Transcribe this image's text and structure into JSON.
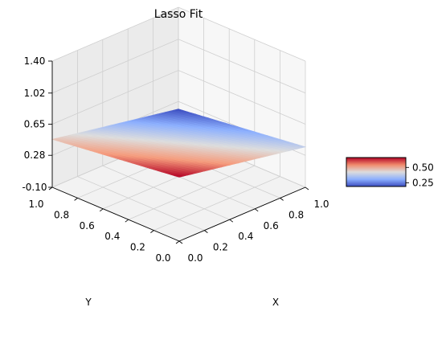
{
  "chart_data": {
    "type": "surface",
    "title": "Lasso Fit",
    "xlabel": "X",
    "ylabel": "Y",
    "zlabel": "",
    "x_ticks": [
      "0.0",
      "0.2",
      "0.4",
      "0.6",
      "0.8",
      "1.0"
    ],
    "y_ticks": [
      "0.0",
      "0.2",
      "0.4",
      "0.6",
      "0.8",
      "1.0"
    ],
    "z_ticks": [
      "-0.10",
      "0.28",
      "0.65",
      "1.02",
      "1.40"
    ],
    "xlim": [
      0,
      1
    ],
    "ylim": [
      0,
      1
    ],
    "zlim": [
      -0.1,
      1.4
    ],
    "grid": true,
    "colormap": "coolwarm",
    "corner_values": [
      {
        "x": 0,
        "y": 0,
        "z": 0.66
      },
      {
        "x": 1,
        "y": 0,
        "z": 0.38
      },
      {
        "x": 0,
        "y": 1,
        "z": 0.47
      },
      {
        "x": 1,
        "y": 1,
        "z": 0.19
      }
    ],
    "colorbar": {
      "ticks": [
        "0.50",
        "0.25"
      ],
      "values": [
        0.5,
        0.25
      ],
      "range": [
        0.19,
        0.66
      ]
    }
  }
}
